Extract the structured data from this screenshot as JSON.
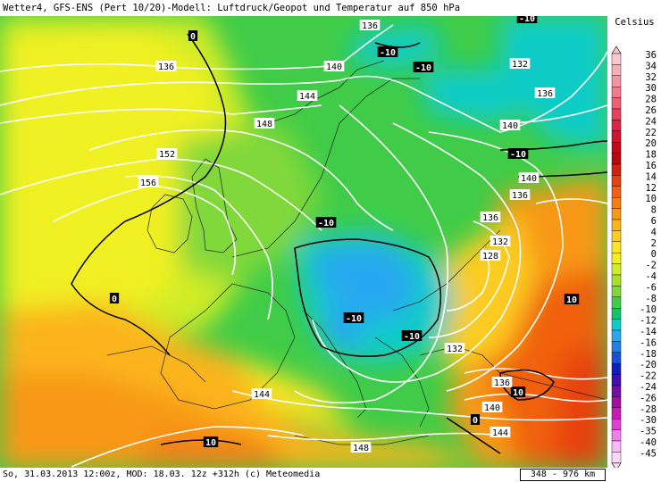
{
  "title": "Wetter4, GFS-ENS (Pert 10/20)-Modell: Luftdruck/Geopot und Temperatur auf 850 hPa",
  "footer": {
    "info": "So, 31.03.2013 12:00z, MOD: 18.03. 12z +312h (c) Meteomedia",
    "scale": "348 - 976 km"
  },
  "legend": {
    "unit": "Celsius",
    "entries": [
      {
        "value": "36",
        "color": "#f8c8d0"
      },
      {
        "value": "34",
        "color": "#f6aeb8"
      },
      {
        "value": "32",
        "color": "#f494a2"
      },
      {
        "value": "30",
        "color": "#f27a8c"
      },
      {
        "value": "28",
        "color": "#ee5e76"
      },
      {
        "value": "26",
        "color": "#e8405e"
      },
      {
        "value": "24",
        "color": "#e02448"
      },
      {
        "value": "22",
        "color": "#d41030"
      },
      {
        "value": "20",
        "color": "#c40818"
      },
      {
        "value": "18",
        "color": "#b80810"
      },
      {
        "value": "16",
        "color": "#d42010"
      },
      {
        "value": "14",
        "color": "#e84010"
      },
      {
        "value": "12",
        "color": "#f06010"
      },
      {
        "value": "10",
        "color": "#f47e14"
      },
      {
        "value": "8",
        "color": "#f89818"
      },
      {
        "value": "6",
        "color": "#fbb41c"
      },
      {
        "value": "4",
        "color": "#fccc20"
      },
      {
        "value": "2",
        "color": "#fde424"
      },
      {
        "value": "0",
        "color": "#f0f020"
      },
      {
        "value": "-2",
        "color": "#d0ec28"
      },
      {
        "value": "-4",
        "color": "#a8e030"
      },
      {
        "value": "-6",
        "color": "#80d83a"
      },
      {
        "value": "-8",
        "color": "#40cc48"
      },
      {
        "value": "-10",
        "color": "#10c468"
      },
      {
        "value": "-12",
        "color": "#10ccc8"
      },
      {
        "value": "-14",
        "color": "#28a8f0"
      },
      {
        "value": "-16",
        "color": "#2080e8"
      },
      {
        "value": "-18",
        "color": "#1850d8"
      },
      {
        "value": "-20",
        "color": "#1020c0"
      },
      {
        "value": "-22",
        "color": "#4010b0"
      },
      {
        "value": "-24",
        "color": "#7010a8"
      },
      {
        "value": "-26",
        "color": "#a010a0"
      },
      {
        "value": "-28",
        "color": "#c818b8"
      },
      {
        "value": "-30",
        "color": "#e040d0"
      },
      {
        "value": "-35",
        "color": "#f080e8"
      },
      {
        "value": "-40",
        "color": "#f8b8f4"
      },
      {
        "value": "-45",
        "color": "#fcd8f8"
      }
    ]
  },
  "temperature_labels": [
    "0",
    "-10",
    "-10",
    "-10",
    "-10",
    "-10",
    "0",
    "-10",
    "-10",
    "10",
    "10",
    "0",
    "10"
  ],
  "geopotential_labels": [
    "136",
    "136",
    "140",
    "144",
    "148",
    "152",
    "156",
    "136",
    "132",
    "136",
    "140",
    "140",
    "136",
    "132",
    "128",
    "132",
    "136",
    "140",
    "144",
    "144",
    "148"
  ]
}
